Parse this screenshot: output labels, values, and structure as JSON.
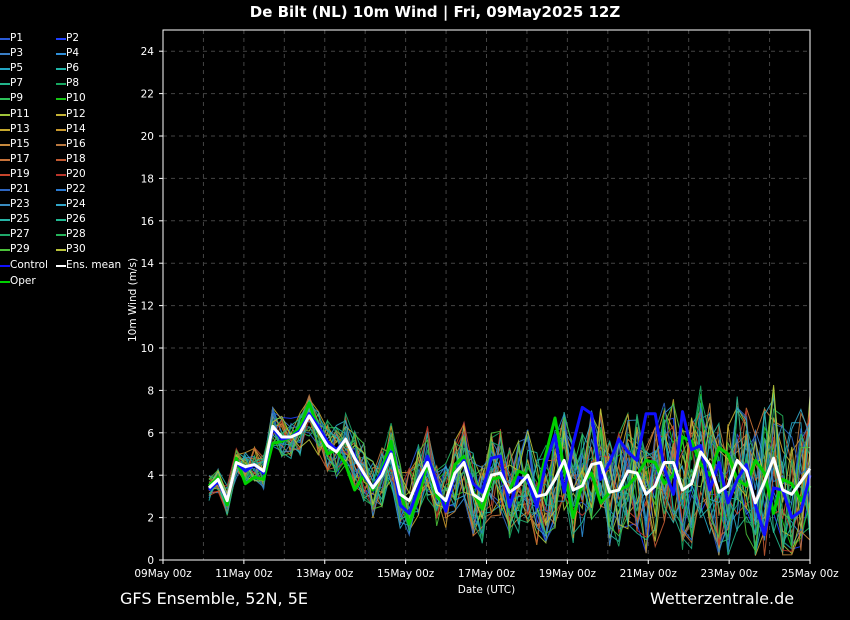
{
  "title": "De Bilt  (NL)  10m Wind | Fri, 09May2025 12Z",
  "footer_left": "GFS Ensemble, 52N, 5E",
  "footer_right": "Wetterzentrale.de",
  "legend": [
    {
      "label": "P1",
      "color": "#2a5bd7"
    },
    {
      "label": "P2",
      "color": "#1e3fff"
    },
    {
      "label": "P3",
      "color": "#3a7ec6"
    },
    {
      "label": "P4",
      "color": "#2f8fd8"
    },
    {
      "label": "P5",
      "color": "#23a6c4"
    },
    {
      "label": "P6",
      "color": "#1fb5a8"
    },
    {
      "label": "P7",
      "color": "#22b58b"
    },
    {
      "label": "P8",
      "color": "#17a760"
    },
    {
      "label": "P9",
      "color": "#2ec25a"
    },
    {
      "label": "P10",
      "color": "#16c414"
    },
    {
      "label": "P11",
      "color": "#9fc43a"
    },
    {
      "label": "P12",
      "color": "#c4b234"
    },
    {
      "label": "P13",
      "color": "#c7a92e"
    },
    {
      "label": "P14",
      "color": "#c8982d"
    },
    {
      "label": "P15",
      "color": "#c78a3e"
    },
    {
      "label": "P16",
      "color": "#b9773e"
    },
    {
      "label": "P17",
      "color": "#c8733a"
    },
    {
      "label": "P18",
      "color": "#c25a32"
    },
    {
      "label": "P19",
      "color": "#c8452c"
    },
    {
      "label": "P20",
      "color": "#b9352a"
    },
    {
      "label": "P21",
      "color": "#2e66c0"
    },
    {
      "label": "P22",
      "color": "#2b7ad0"
    },
    {
      "label": "P23",
      "color": "#3a8cc0"
    },
    {
      "label": "P24",
      "color": "#31a6c8"
    },
    {
      "label": "P25",
      "color": "#27b4a6"
    },
    {
      "label": "P26",
      "color": "#22b892"
    },
    {
      "label": "P27",
      "color": "#1fa86a"
    },
    {
      "label": "P28",
      "color": "#25b35a"
    },
    {
      "label": "P29",
      "color": "#4cc23a"
    },
    {
      "label": "P30",
      "color": "#b8c23a"
    },
    {
      "label": "Control",
      "color": "#1010ff"
    },
    {
      "label": "Ens. mean",
      "color": "#ffffff"
    },
    {
      "label": "Oper",
      "color": "#00d000"
    }
  ],
  "chart_data": {
    "type": "line",
    "title": "De Bilt  (NL)  10m Wind | Fri, 09May2025 12Z",
    "xlabel": "Date (UTC)",
    "ylabel": "10m Wind (m/s)",
    "ylim": [
      0,
      25
    ],
    "yticks": [
      0,
      2,
      4,
      6,
      8,
      10,
      12,
      14,
      16,
      18,
      20,
      22,
      24
    ],
    "xticks": [
      "09May 00z",
      "11May 00z",
      "13May 00z",
      "15May 00z",
      "17May 00z",
      "19May 00z",
      "21May 00z",
      "23May 00z",
      "25May 00z"
    ],
    "x_start": "09May 00z",
    "x_end": "25May 00z",
    "grid": true,
    "series": [
      {
        "name": "Control",
        "color": "#1010ff",
        "width": 3,
        "values": [
          3.3,
          3.7,
          2.8,
          4.6,
          4.2,
          4.5,
          4.1,
          6.2,
          5.7,
          5.8,
          6.1,
          6.9,
          6.3,
          5.6,
          5.2,
          5.7,
          4.9,
          4.0,
          3.4,
          4.2,
          5.1,
          2.6,
          2.2,
          3.4,
          4.9,
          3.7,
          2.3,
          4.1,
          4.7,
          3.6,
          3.2,
          4.8,
          4.9,
          2.5,
          3.9,
          3.8,
          2.5,
          4.6,
          5.9,
          3.2,
          5.5,
          7.2,
          6.9,
          3.8,
          4.6,
          5.7,
          5.1,
          4.7,
          6.9,
          6.9,
          4.3,
          3.1,
          7.0,
          5.2,
          5.4,
          3.3,
          4.6,
          2.7,
          3.8,
          4.5,
          2.6,
          1.2,
          3.4,
          3.3,
          2.0,
          2.3,
          4.0
        ]
      },
      {
        "name": "Ens. mean",
        "color": "#ffffff",
        "width": 3,
        "values": [
          3.4,
          3.8,
          2.8,
          4.6,
          4.4,
          4.5,
          4.2,
          6.3,
          5.8,
          5.8,
          6.0,
          6.8,
          6.1,
          5.4,
          5.1,
          5.7,
          4.8,
          4.1,
          3.4,
          4.0,
          5.0,
          3.1,
          2.8,
          3.8,
          4.6,
          3.2,
          2.8,
          4.1,
          4.6,
          3.1,
          2.8,
          4.0,
          4.1,
          3.2,
          3.5,
          4.0,
          3.0,
          3.1,
          3.8,
          4.7,
          3.3,
          3.5,
          4.5,
          4.6,
          3.2,
          3.3,
          4.2,
          4.1,
          3.1,
          3.5,
          4.6,
          4.6,
          3.3,
          3.6,
          5.1,
          4.5,
          3.2,
          3.5,
          4.7,
          4.2,
          2.7,
          3.7,
          4.8,
          3.3,
          3.1,
          3.7,
          4.3
        ]
      },
      {
        "name": "Oper",
        "color": "#00d000",
        "width": 3,
        "values": [
          3.5,
          3.9,
          2.6,
          4.8,
          3.6,
          3.9,
          3.8,
          5.5,
          5.6,
          5.8,
          6.3,
          7.4,
          6.2,
          5.0,
          5.2,
          4.5,
          3.3,
          4.0,
          3.3,
          4.3,
          5.6,
          3.3,
          1.7,
          3.0,
          4.6,
          3.0,
          2.6,
          4.5,
          4.9,
          3.2,
          2.4,
          3.8,
          3.9,
          3.3,
          4.2,
          4.0,
          3.1,
          5.0,
          6.7,
          4.3,
          2.0,
          3.6,
          4.1,
          2.7,
          3.2,
          3.3,
          3.5,
          4.0,
          4.7,
          4.6,
          3.6,
          4.0,
          5.8,
          5.6,
          4.5,
          4.0,
          5.3,
          5.0,
          3.8,
          3.5,
          4.7,
          4.1,
          2.2,
          3.8,
          3.6,
          2.8,
          3.5
        ]
      }
    ]
  }
}
